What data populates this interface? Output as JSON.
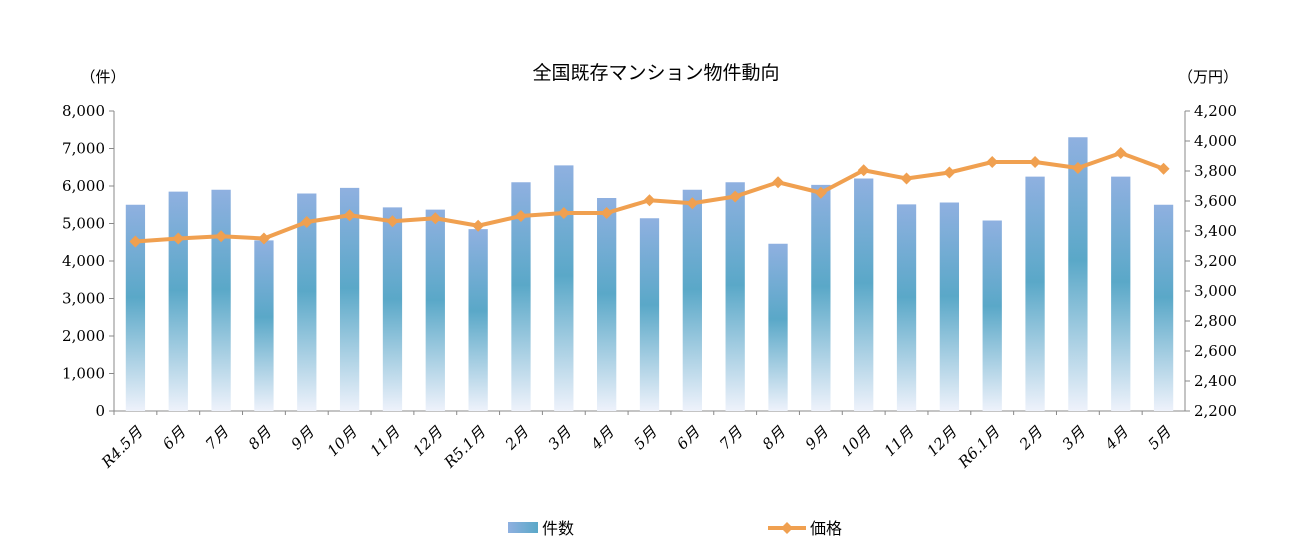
{
  "chart_data": {
    "type": "bar+line",
    "title": "全国既存マンション物件動向",
    "y_left_unit": "（件）",
    "y_right_unit": "（万円）",
    "y_left_lim": [
      0,
      8000
    ],
    "y_left_ticks": [
      "0",
      "1,000",
      "2,000",
      "3,000",
      "4,000",
      "5,000",
      "6,000",
      "7,000",
      "8,000"
    ],
    "y_right_lim": [
      2200,
      4200
    ],
    "y_right_ticks": [
      "2,200",
      "2,400",
      "2,600",
      "2,800",
      "3,000",
      "3,200",
      "3,400",
      "3,600",
      "3,800",
      "4,000",
      "4,200"
    ],
    "categories": [
      "R4.5月",
      "6月",
      "7月",
      "8月",
      "9月",
      "10月",
      "11月",
      "12月",
      "R5.1月",
      "2月",
      "3月",
      "4月",
      "5月",
      "6月",
      "7月",
      "8月",
      "9月",
      "10月",
      "11月",
      "12月",
      "R6.1月",
      "2月",
      "3月",
      "4月",
      "5月"
    ],
    "series": [
      {
        "name": "件数",
        "type": "bar",
        "axis": "left",
        "color": "#6fa8d6",
        "values": [
          5500,
          5850,
          5900,
          4550,
          5800,
          5950,
          5430,
          5370,
          4850,
          6100,
          6550,
          5680,
          5140,
          5900,
          6100,
          4460,
          6030,
          6200,
          5510,
          5560,
          5080,
          6250,
          7300,
          6250,
          5500
        ]
      },
      {
        "name": "価格",
        "type": "line",
        "axis": "right",
        "color": "#f0a050",
        "values": [
          3330,
          3350,
          3365,
          3350,
          3460,
          3505,
          3465,
          3485,
          3435,
          3500,
          3520,
          3520,
          3605,
          3585,
          3630,
          3725,
          3655,
          3805,
          3750,
          3790,
          3860,
          3860,
          3820,
          3920,
          3815
        ]
      }
    ],
    "legend_position": "bottom",
    "grid": false
  }
}
